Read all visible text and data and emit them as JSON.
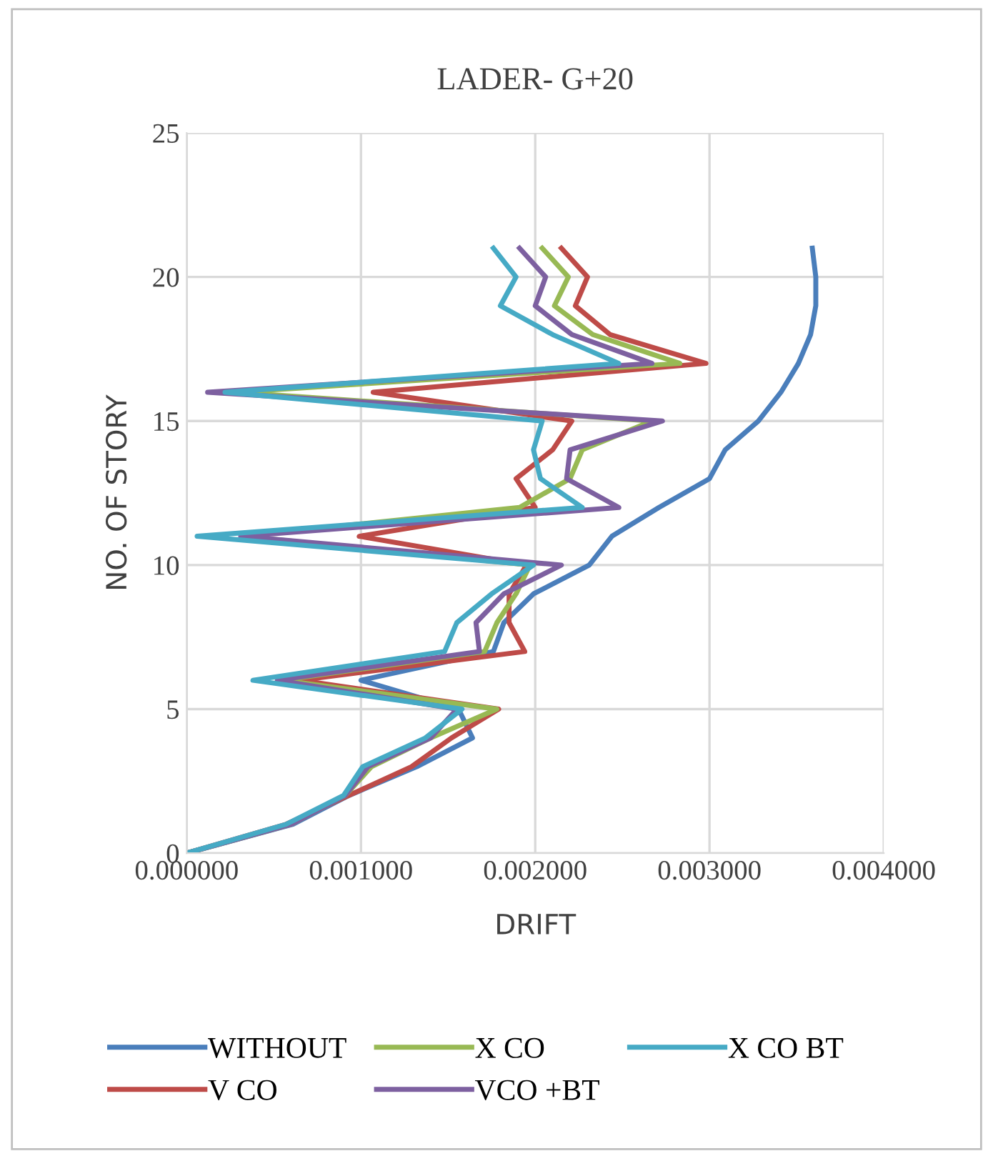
{
  "chart_data": {
    "type": "line",
    "title": "LADER- G+20",
    "xlabel": "DRIFT",
    "ylabel": "NO. OF STORY",
    "xlim": [
      0,
      0.004
    ],
    "xticks": [
      {
        "value": 0,
        "label": "0.000000"
      },
      {
        "value": 0.001,
        "label": "0.001000"
      },
      {
        "value": 0.002,
        "label": "0.002000"
      },
      {
        "value": 0.003,
        "label": "0.003000"
      },
      {
        "value": 0.004,
        "label": "0.004000"
      }
    ],
    "ylim": [
      0,
      25
    ],
    "yticks": [
      0,
      5,
      10,
      15,
      20,
      25
    ],
    "grid": true,
    "legend": "bottom",
    "marker": "none",
    "line_style": "solid",
    "series": [
      {
        "name": "WITHOUT",
        "color": "#4a7ebb",
        "x": [
          0,
          0.00061,
          0.00093,
          0.00132,
          0.00164,
          0.00156,
          0.001,
          0.00176,
          0.00182,
          0.00199,
          0.00231,
          0.00244,
          0.00271,
          0.003,
          0.00309,
          0.00328,
          0.00341,
          0.00351,
          0.00358,
          0.00361,
          0.00361,
          0.00359
        ],
        "values": [
          0,
          1,
          2,
          3,
          4,
          5,
          6,
          7,
          8,
          9,
          10,
          11,
          12,
          13,
          14,
          15,
          16,
          17,
          18,
          19,
          20,
          21
        ]
      },
      {
        "name": "V CO",
        "color": "#be4b48",
        "x": [
          0,
          0.00057,
          0.00093,
          0.00129,
          0.00152,
          0.00179,
          0.00065,
          0.00194,
          0.00185,
          0.00185,
          0.00195,
          0.00099,
          0.002,
          0.00189,
          0.0021,
          0.00221,
          0.00107,
          0.00298,
          0.00243,
          0.00223,
          0.0023,
          0.00215
        ],
        "values": [
          0,
          1,
          2,
          3,
          4,
          5,
          6,
          7,
          8,
          9,
          10,
          11,
          12,
          13,
          14,
          15,
          16,
          17,
          18,
          19,
          20,
          21
        ]
      },
      {
        "name": "X CO",
        "color": "#98b954",
        "x": [
          0,
          0.0006,
          0.00091,
          0.00106,
          0.0014,
          0.00178,
          0.00055,
          0.00171,
          0.00178,
          0.00189,
          0.00197,
          0.00032,
          0.00191,
          0.0022,
          0.00227,
          0.00267,
          0.00028,
          0.00283,
          0.00233,
          0.00211,
          0.00219,
          0.00204
        ],
        "values": [
          0,
          1,
          2,
          3,
          4,
          5,
          6,
          7,
          8,
          9,
          10,
          11,
          12,
          13,
          14,
          15,
          16,
          17,
          18,
          19,
          20,
          21
        ]
      },
      {
        "name": "VCO +BT",
        "color": "#7d60a0",
        "x": [
          0,
          0.0006,
          0.00091,
          0.00104,
          0.0014,
          0.00155,
          0.00052,
          0.00168,
          0.00166,
          0.00182,
          0.00215,
          0.00031,
          0.00248,
          0.00218,
          0.0022,
          0.00273,
          0.00012,
          0.00267,
          0.00221,
          0.002,
          0.00206,
          0.00191
        ],
        "values": [
          0,
          1,
          2,
          3,
          4,
          5,
          6,
          7,
          8,
          9,
          10,
          11,
          12,
          13,
          14,
          15,
          16,
          17,
          18,
          19,
          20,
          21
        ]
      },
      {
        "name": "X CO BT",
        "color": "#46aac5",
        "x": [
          0,
          0.00057,
          0.0009,
          0.00101,
          0.00137,
          0.00158,
          0.00038,
          0.00148,
          0.00155,
          0.00175,
          0.00199,
          6e-05,
          0.00227,
          0.00203,
          0.00199,
          0.00204,
          0.00022,
          0.00248,
          0.0021,
          0.0018,
          0.00189,
          0.00176
        ],
        "values": [
          0,
          1,
          2,
          3,
          4,
          5,
          6,
          7,
          8,
          9,
          10,
          11,
          12,
          13,
          14,
          15,
          16,
          17,
          18,
          19,
          20,
          21
        ]
      }
    ]
  }
}
